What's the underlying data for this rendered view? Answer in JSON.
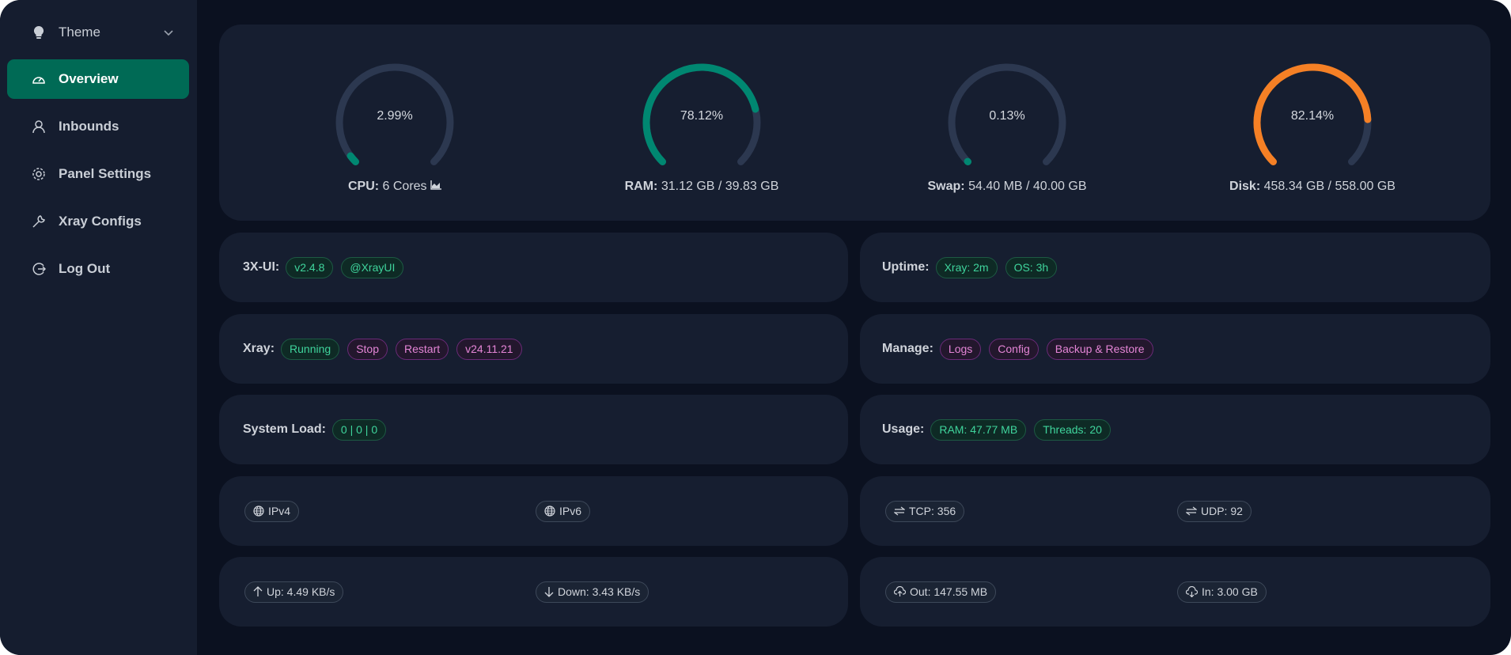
{
  "sidebar": {
    "theme": "Theme",
    "items": [
      {
        "label": "Overview",
        "icon": "dashboard-icon"
      },
      {
        "label": "Inbounds",
        "icon": "user-icon"
      },
      {
        "label": "Panel Settings",
        "icon": "gear-icon"
      },
      {
        "label": "Xray Configs",
        "icon": "wrench-icon"
      },
      {
        "label": "Log Out",
        "icon": "logout-icon"
      }
    ]
  },
  "gauges": [
    {
      "value": 2.99,
      "text": "2.99%",
      "label": "CPU:",
      "detail": "6 Cores",
      "color": "#008771"
    },
    {
      "value": 78.12,
      "text": "78.12%",
      "label": "RAM:",
      "detail": "31.12 GB / 39.83 GB",
      "color": "#008771"
    },
    {
      "value": 0.13,
      "text": "0.13%",
      "label": "Swap:",
      "detail": "54.40 MB / 40.00 GB",
      "color": "#008771"
    },
    {
      "value": 82.14,
      "text": "82.14%",
      "label": "Disk:",
      "detail": "458.34 GB / 558.00 GB",
      "color": "#f58025"
    }
  ],
  "colors": {
    "track": "#2c3850",
    "accent": "#006a55"
  },
  "info": {
    "xui": {
      "label": "3X-UI:",
      "version": "v2.4.8",
      "channel": "@XrayUI"
    },
    "uptime": {
      "label": "Uptime:",
      "xray": "Xray: 2m",
      "os": "OS: 3h"
    },
    "xray": {
      "label": "Xray:",
      "status": "Running",
      "stop": "Stop",
      "restart": "Restart",
      "version": "v24.11.21"
    },
    "manage": {
      "label": "Manage:",
      "logs": "Logs",
      "config": "Config",
      "backup": "Backup & Restore"
    },
    "load": {
      "label": "System Load:",
      "value": "0 | 0 | 0"
    },
    "usage": {
      "label": "Usage:",
      "ram": "RAM: 47.77 MB",
      "threads": "Threads: 20"
    },
    "ipv4": "IPv4",
    "ipv6": "IPv6",
    "tcp": "TCP: 356",
    "udp": "UDP: 92",
    "up": "Up: 4.49 KB/s",
    "down": "Down: 3.43 KB/s",
    "out": "Out: 147.55 MB",
    "in": "In: 3.00 GB"
  }
}
